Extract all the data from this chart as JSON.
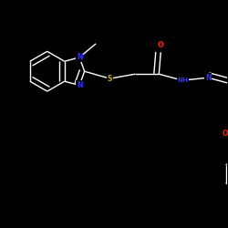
{
  "background_color": "#000000",
  "bond_color": "#ffffff",
  "atom_colors": {
    "N": "#3333ff",
    "O": "#ff2200",
    "S": "#ccaa00",
    "C": "#ffffff",
    "H": "#ffffff"
  },
  "figsize": [
    2.5,
    2.5
  ],
  "dpi": 100,
  "lw": 1.0,
  "fs": 5.5,
  "xlim": [
    0,
    2.5
  ],
  "ylim": [
    0,
    2.5
  ]
}
